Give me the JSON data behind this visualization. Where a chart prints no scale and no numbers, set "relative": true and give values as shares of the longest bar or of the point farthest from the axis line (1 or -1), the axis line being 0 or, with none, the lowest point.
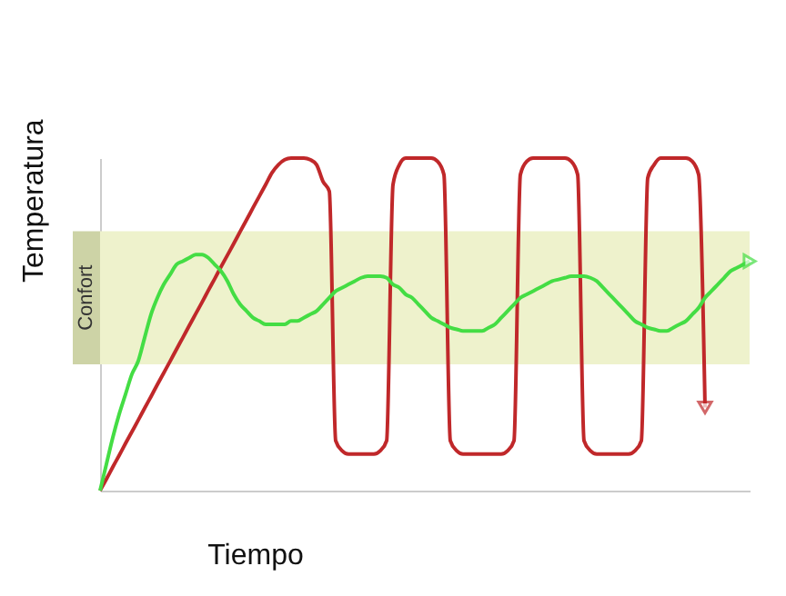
{
  "chart_data": {
    "type": "line",
    "relative": true,
    "xlabel": "Tiempo",
    "ylabel": "Temperatura",
    "categories": [
      null,
      null,
      null,
      null,
      null,
      null,
      null,
      null,
      null,
      null,
      null,
      null,
      null,
      null,
      null,
      null,
      null,
      null,
      null,
      null,
      null,
      null,
      null,
      null,
      null,
      null,
      null,
      null,
      null,
      null,
      null,
      null,
      null,
      null,
      null,
      null,
      null,
      null,
      null,
      null,
      null,
      null,
      null,
      null,
      null,
      null,
      null,
      null,
      null,
      null,
      null,
      null,
      null,
      null,
      null,
      null,
      null,
      null,
      null,
      null,
      null,
      null,
      null,
      null,
      null,
      null,
      null,
      null,
      null,
      null,
      null,
      null,
      null,
      null,
      null,
      null,
      null,
      null,
      null,
      null,
      null,
      null,
      null,
      null,
      null,
      null,
      null,
      null,
      null,
      null,
      null,
      null,
      null,
      null,
      null,
      null,
      null,
      null,
      null,
      null,
      null,
      null,
      null
    ],
    "series": [
      {
        "color": "#c0282a",
        "values": [
          0,
          0.035,
          0.071,
          0.106,
          0.142,
          0.177,
          0.212,
          0.248,
          0.283,
          0.319,
          0.354,
          0.389,
          0.425,
          0.46,
          0.496,
          0.531,
          0.566,
          0.602,
          0.637,
          0.673,
          0.708,
          0.743,
          0.779,
          0.814,
          0.85,
          0.885,
          0.92,
          0.956,
          0.98,
          0.995,
          1,
          1,
          1,
          0.995,
          0.98,
          0.93,
          0.9,
          0.15,
          0.12,
          0.11,
          0.11,
          0.11,
          0.11,
          0.11,
          0.12,
          0.15,
          0.92,
          0.98,
          1,
          1,
          1,
          1,
          1,
          0.99,
          0.95,
          0.15,
          0.12,
          0.11,
          0.11,
          0.11,
          0.11,
          0.11,
          0.11,
          0.11,
          0.12,
          0.15,
          0.95,
          0.99,
          1,
          1,
          1,
          1,
          1,
          1,
          0.99,
          0.95,
          0.15,
          0.12,
          0.11,
          0.11,
          0.11,
          0.11,
          0.11,
          0.11,
          0.12,
          0.15,
          0.94,
          0.98,
          1,
          1,
          1,
          1,
          1,
          0.99,
          0.95,
          0.25,
          null,
          null,
          null,
          null,
          null,
          null,
          null
        ]
      },
      {
        "color": "#44dd44",
        "values": [
          0,
          0.08,
          0.16,
          0.23,
          0.29,
          0.35,
          0.39,
          0.46,
          0.53,
          0.58,
          0.62,
          0.65,
          0.68,
          0.69,
          0.7,
          0.71,
          0.71,
          0.7,
          0.68,
          0.66,
          0.63,
          0.59,
          0.56,
          0.54,
          0.52,
          0.51,
          0.5,
          0.5,
          0.5,
          0.5,
          0.51,
          0.51,
          0.52,
          0.53,
          0.54,
          0.56,
          0.58,
          0.6,
          0.61,
          0.62,
          0.63,
          0.64,
          0.645,
          0.645,
          0.645,
          0.64,
          0.62,
          0.61,
          0.59,
          0.58,
          0.56,
          0.54,
          0.52,
          0.51,
          0.5,
          0.49,
          0.485,
          0.48,
          0.48,
          0.48,
          0.48,
          0.49,
          0.5,
          0.52,
          0.54,
          0.56,
          0.58,
          0.59,
          0.6,
          0.61,
          0.62,
          0.63,
          0.635,
          0.64,
          0.645,
          0.645,
          0.645,
          0.64,
          0.63,
          0.61,
          0.59,
          0.57,
          0.55,
          0.53,
          0.51,
          0.5,
          0.49,
          0.485,
          0.48,
          0.48,
          0.49,
          0.5,
          0.51,
          0.53,
          0.55,
          0.58,
          0.6,
          0.62,
          0.64,
          0.66,
          0.67,
          0.68,
          0.69
        ]
      }
    ],
    "bands": [
      {
        "axis": "y",
        "from": 0.38,
        "to": 0.78,
        "label": "Confort",
        "color": "#eef2cc"
      }
    ]
  }
}
